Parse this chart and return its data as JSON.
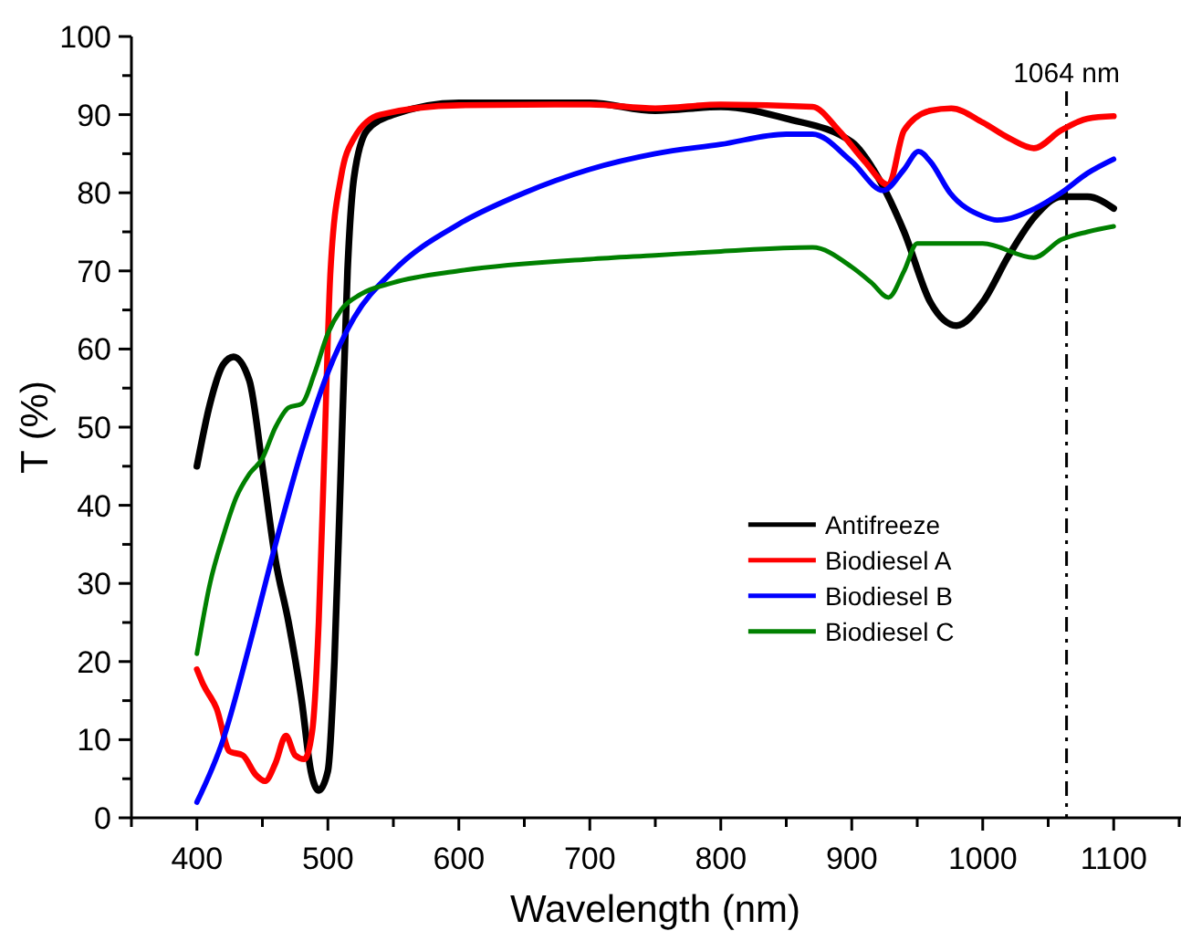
{
  "chart_data": {
    "type": "line",
    "xlabel": "Wavelength (nm)",
    "ylabel": "T (%)",
    "xlim": [
      350,
      1150
    ],
    "ylim": [
      0,
      100
    ],
    "xticks": [
      {
        "value": 350,
        "label": null
      },
      400,
      {
        "value": 450,
        "label": null
      },
      500,
      {
        "value": 550,
        "label": null
      },
      600,
      {
        "value": 650,
        "label": null
      },
      700,
      {
        "value": 750,
        "label": null
      },
      800,
      {
        "value": 850,
        "label": null
      },
      900,
      {
        "value": 950,
        "label": null
      },
      1000,
      {
        "value": 1050,
        "label": null
      },
      1100,
      {
        "value": 1150,
        "label": null
      }
    ],
    "yticks": [
      0,
      {
        "value": 5,
        "label": null
      },
      10,
      {
        "value": 15,
        "label": null
      },
      20,
      {
        "value": 25,
        "label": null
      },
      30,
      {
        "value": 35,
        "label": null
      },
      40,
      {
        "value": 45,
        "label": null
      },
      50,
      {
        "value": 55,
        "label": null
      },
      60,
      {
        "value": 65,
        "label": null
      },
      70,
      {
        "value": 75,
        "label": null
      },
      80,
      {
        "value": 85,
        "label": null
      },
      90,
      {
        "value": 95,
        "label": null
      },
      100
    ],
    "grid": false,
    "legend": "bottom right",
    "marker": "none",
    "line_style": "solid",
    "ref_lines": [
      {
        "axis": "x",
        "value": 1064,
        "label": "1064 nm",
        "color": "#000000",
        "line_style": "dashdot"
      }
    ],
    "series": [
      {
        "name": "Antifreeze",
        "color": "#000000",
        "x": [
          400,
          410,
          420,
          428,
          440,
          450,
          460,
          470,
          480,
          487,
          493,
          500,
          505,
          510,
          515,
          520,
          530,
          550,
          600,
          700,
          750,
          800,
          850,
          900,
          920,
          940,
          960,
          980,
          1000,
          1020,
          1040,
          1060,
          1080,
          1100
        ],
        "values": [
          45,
          53,
          58,
          59,
          56,
          45,
          33,
          25,
          15,
          6,
          3.5,
          6,
          20,
          45,
          70,
          82,
          88,
          90,
          91.5,
          91.5,
          90.5,
          91,
          89.5,
          86.5,
          82,
          75,
          66,
          63,
          66,
          72,
          77,
          79.5,
          79.5,
          78
        ]
      },
      {
        "name": "Biodiesel A",
        "color": "#ff0000",
        "x": [
          400,
          405,
          415,
          425,
          435,
          445,
          452,
          460,
          468,
          475,
          482,
          488,
          493,
          497,
          502,
          510,
          520,
          540,
          600,
          700,
          750,
          800,
          870,
          890,
          910,
          928,
          940,
          960,
          976,
          1000,
          1020,
          1039,
          1060,
          1080,
          1100
        ],
        "values": [
          19,
          17,
          14,
          8.5,
          8,
          5.5,
          4.7,
          7,
          10.5,
          8,
          7.5,
          11,
          25,
          45,
          70,
          82,
          87,
          90,
          91.2,
          91.3,
          90.8,
          91.3,
          91,
          88,
          84,
          81,
          88,
          90.5,
          90.8,
          89,
          87,
          85.7,
          88,
          89.5,
          89.8
        ]
      },
      {
        "name": "Biodiesel B",
        "color": "#0000ff",
        "x": [
          400,
          420,
          440,
          460,
          480,
          500,
          520,
          550,
          600,
          650,
          700,
          750,
          800,
          850,
          870,
          900,
          924,
          940,
          951,
          960,
          975,
          1000,
          1011,
          1040,
          1060,
          1080,
          1100
        ],
        "values": [
          2,
          10,
          22,
          35,
          47,
          57,
          64,
          70,
          76,
          80,
          83,
          85,
          86.2,
          87.5,
          87.5,
          84,
          80.3,
          83,
          85.3,
          84,
          80,
          77,
          76.5,
          78,
          80,
          82.5,
          84.3
        ]
      },
      {
        "name": "Biodiesel C",
        "color": "#008000",
        "x": [
          400,
          410,
          420,
          430,
          440,
          450,
          460,
          470,
          480,
          490,
          500,
          510,
          525,
          550,
          600,
          700,
          750,
          800,
          870,
          900,
          915,
          928,
          940,
          950,
          1000,
          1039,
          1060,
          1080,
          1100
        ],
        "values": [
          21,
          30,
          36,
          41,
          44,
          46,
          50,
          52.5,
          53,
          57,
          62,
          65,
          67,
          68.5,
          70,
          71.5,
          72,
          72.5,
          73,
          70.5,
          68.5,
          66.6,
          70,
          73.5,
          73.5,
          71.7,
          74,
          75,
          75.7
        ]
      }
    ]
  }
}
